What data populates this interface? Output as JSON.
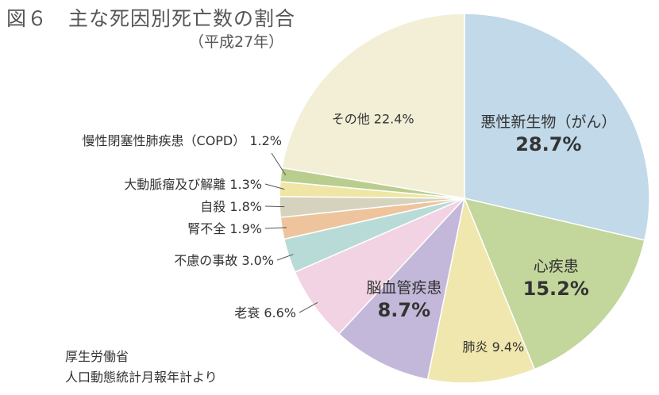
{
  "title": "図６　主な死因別死亡数の割合",
  "subtitle": "（平成27年）",
  "source_lines": [
    "厚生労働省",
    "人口動態統計月報年計より"
  ],
  "chart_data": {
    "type": "pie",
    "title": "図６　主な死因別死亡数の割合",
    "subtitle": "（平成27年）",
    "unit": "%",
    "start": "12 o'clock",
    "direction": "clockwise",
    "slices": [
      {
        "name": "悪性新生物（がん）",
        "value": 28.7,
        "label": "28.7%",
        "color": "#c1d9e8"
      },
      {
        "name": "心疾患",
        "value": 15.2,
        "label": "15.2%",
        "color": "#c3d69b"
      },
      {
        "name": "肺炎",
        "value": 9.4,
        "label": "9.4%",
        "color": "#efe7ad"
      },
      {
        "name": "脳血管疾患",
        "value": 8.7,
        "label": "8.7%",
        "color": "#c3b8d9"
      },
      {
        "name": "老衰",
        "value": 6.6,
        "label": "6.6%",
        "color": "#f1d3e3"
      },
      {
        "name": "不慮の事故",
        "value": 3.0,
        "label": "3.0%",
        "color": "#b9dbd7"
      },
      {
        "name": "腎不全",
        "value": 1.9,
        "label": "1.9%",
        "color": "#eec49d"
      },
      {
        "name": "自殺",
        "value": 1.8,
        "label": "1.8%",
        "color": "#d5d3be"
      },
      {
        "name": "大動脈瘤及び解離",
        "value": 1.3,
        "label": "1.3%",
        "color": "#efe6a6"
      },
      {
        "name": "慢性閉塞性肺疾患（COPD）",
        "value": 1.2,
        "label": "1.2%",
        "color": "#b9cd8e"
      },
      {
        "name": "その他",
        "value": 22.4,
        "label": "22.4%",
        "color": "#f2efd6"
      }
    ]
  }
}
